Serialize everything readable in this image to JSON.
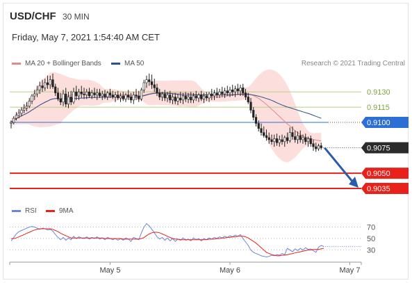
{
  "header": {
    "symbol": "USD/CHF",
    "interval": "30 MIN",
    "datetime": "Friday, May 7, 2021 1:54:40 AM CET",
    "credit": "Research © 2021 Trading Central"
  },
  "legend": {
    "ma20_label": "MA 20 + Bollinger Bands",
    "ma50_label": "MA 50",
    "rsi_label": "RSI",
    "ma9_label": "9MA"
  },
  "colors": {
    "ma20": "#e08a8a",
    "ma50": "#2d4e8f",
    "band_fill": "#fbd9d6",
    "resistance": "#b7cf86",
    "pivot": "#2e6fd6",
    "support": "#e8211a",
    "current": "#2b2b2b",
    "arrow": "#2a5caa",
    "rsi": "#6a86d6",
    "rsi_ma": "#e8211a"
  },
  "chart_data": [
    {
      "type": "candlestick",
      "title": "USD/CHF 30 MIN",
      "x_tick_labels": [
        "May 5",
        "May 6",
        "May 7"
      ],
      "x_tick_index": [
        38,
        84,
        130
      ],
      "ylim": [
        0.9022,
        0.9152
      ],
      "series": [
        {
          "name": "MA 20 + Bollinger Bands"
        },
        {
          "name": "MA 50"
        }
      ],
      "ohlc": [
        [
          0.9099,
          0.9102,
          0.9094,
          0.91
        ],
        [
          0.91,
          0.9106,
          0.9098,
          0.9104
        ],
        [
          0.9104,
          0.911,
          0.9102,
          0.9107
        ],
        [
          0.9107,
          0.9113,
          0.9104,
          0.9109
        ],
        [
          0.9109,
          0.9115,
          0.9106,
          0.9112
        ],
        [
          0.9112,
          0.9118,
          0.9109,
          0.9114
        ],
        [
          0.9114,
          0.912,
          0.9111,
          0.9116
        ],
        [
          0.9116,
          0.9124,
          0.9114,
          0.9121
        ],
        [
          0.9121,
          0.9128,
          0.9118,
          0.9126
        ],
        [
          0.9126,
          0.9132,
          0.9122,
          0.9128
        ],
        [
          0.9128,
          0.9136,
          0.9125,
          0.9132
        ],
        [
          0.9132,
          0.914,
          0.9128,
          0.9136
        ],
        [
          0.9136,
          0.9142,
          0.913,
          0.9134
        ],
        [
          0.9134,
          0.9143,
          0.9131,
          0.9139
        ],
        [
          0.9139,
          0.9146,
          0.9133,
          0.9137
        ],
        [
          0.9137,
          0.9146,
          0.9133,
          0.9142
        ],
        [
          0.9142,
          0.9148,
          0.9133,
          0.9135
        ],
        [
          0.9135,
          0.9138,
          0.9126,
          0.9129
        ],
        [
          0.9129,
          0.9134,
          0.9121,
          0.9123
        ],
        [
          0.9123,
          0.9129,
          0.9117,
          0.912
        ],
        [
          0.912,
          0.9132,
          0.9116,
          0.9128
        ],
        [
          0.9128,
          0.9134,
          0.9115,
          0.9118
        ],
        [
          0.9118,
          0.913,
          0.9114,
          0.9125
        ],
        [
          0.9125,
          0.9131,
          0.9117,
          0.912
        ],
        [
          0.912,
          0.9134,
          0.9118,
          0.913
        ],
        [
          0.913,
          0.9136,
          0.9122,
          0.9126
        ],
        [
          0.9126,
          0.9133,
          0.9122,
          0.913
        ],
        [
          0.913,
          0.9136,
          0.9124,
          0.9128
        ],
        [
          0.9128,
          0.9134,
          0.9123,
          0.9127
        ],
        [
          0.9127,
          0.9133,
          0.9123,
          0.913
        ],
        [
          0.913,
          0.9134,
          0.9124,
          0.9126
        ],
        [
          0.9126,
          0.9132,
          0.9123,
          0.9129
        ],
        [
          0.9129,
          0.9134,
          0.9124,
          0.9127
        ],
        [
          0.9127,
          0.9133,
          0.9122,
          0.9129
        ],
        [
          0.9129,
          0.9133,
          0.9124,
          0.9126
        ],
        [
          0.9126,
          0.9131,
          0.9122,
          0.9128
        ],
        [
          0.9128,
          0.9132,
          0.9123,
          0.9125
        ],
        [
          0.9125,
          0.9131,
          0.9122,
          0.9129
        ],
        [
          0.9129,
          0.9133,
          0.9124,
          0.9127
        ],
        [
          0.9127,
          0.9131,
          0.9123,
          0.9125
        ],
        [
          0.9125,
          0.913,
          0.912,
          0.9127
        ],
        [
          0.9127,
          0.9131,
          0.9122,
          0.9124
        ],
        [
          0.9124,
          0.9129,
          0.912,
          0.9126
        ],
        [
          0.9126,
          0.913,
          0.9121,
          0.9123
        ],
        [
          0.9123,
          0.9129,
          0.912,
          0.9127
        ],
        [
          0.9127,
          0.9132,
          0.9122,
          0.9125
        ],
        [
          0.9125,
          0.9129,
          0.9119,
          0.9122
        ],
        [
          0.9122,
          0.913,
          0.9118,
          0.9127
        ],
        [
          0.9127,
          0.9133,
          0.9122,
          0.9126
        ],
        [
          0.9126,
          0.9131,
          0.912,
          0.9123
        ],
        [
          0.9123,
          0.9134,
          0.9121,
          0.9132
        ],
        [
          0.9132,
          0.9142,
          0.9129,
          0.9139
        ],
        [
          0.9139,
          0.9146,
          0.9134,
          0.9142
        ],
        [
          0.9142,
          0.9148,
          0.9136,
          0.914
        ],
        [
          0.914,
          0.9147,
          0.9133,
          0.9137
        ],
        [
          0.9137,
          0.9143,
          0.913,
          0.9134
        ],
        [
          0.9134,
          0.9138,
          0.9126,
          0.9129
        ],
        [
          0.9129,
          0.9133,
          0.9122,
          0.9125
        ],
        [
          0.9125,
          0.913,
          0.9121,
          0.9128
        ],
        [
          0.9128,
          0.9132,
          0.9121,
          0.9124
        ],
        [
          0.9124,
          0.913,
          0.912,
          0.9127
        ],
        [
          0.9127,
          0.9131,
          0.9119,
          0.9122
        ],
        [
          0.9122,
          0.9128,
          0.9118,
          0.9125
        ],
        [
          0.9125,
          0.9129,
          0.9118,
          0.9121
        ],
        [
          0.9121,
          0.9128,
          0.9117,
          0.9124
        ],
        [
          0.9124,
          0.913,
          0.9119,
          0.9122
        ],
        [
          0.9122,
          0.9129,
          0.9118,
          0.9126
        ],
        [
          0.9126,
          0.913,
          0.912,
          0.9123
        ],
        [
          0.9123,
          0.9129,
          0.9119,
          0.9125
        ],
        [
          0.9125,
          0.913,
          0.9119,
          0.9122
        ],
        [
          0.9122,
          0.9129,
          0.9119,
          0.9126
        ],
        [
          0.9126,
          0.9131,
          0.9121,
          0.9124
        ],
        [
          0.9124,
          0.9129,
          0.912,
          0.9127
        ],
        [
          0.9127,
          0.9131,
          0.9121,
          0.9123
        ],
        [
          0.9123,
          0.9129,
          0.9119,
          0.9126
        ],
        [
          0.9126,
          0.913,
          0.9121,
          0.9124
        ],
        [
          0.9124,
          0.913,
          0.912,
          0.9128
        ],
        [
          0.9128,
          0.9133,
          0.9122,
          0.9126
        ],
        [
          0.9126,
          0.9132,
          0.9122,
          0.9129
        ],
        [
          0.9129,
          0.9134,
          0.9124,
          0.9127
        ],
        [
          0.9127,
          0.9133,
          0.9124,
          0.913
        ],
        [
          0.913,
          0.9135,
          0.9125,
          0.9128
        ],
        [
          0.9128,
          0.9134,
          0.9124,
          0.9131
        ],
        [
          0.9131,
          0.9136,
          0.9126,
          0.9129
        ],
        [
          0.9129,
          0.9135,
          0.9125,
          0.9132
        ],
        [
          0.9132,
          0.9137,
          0.9126,
          0.913
        ],
        [
          0.913,
          0.9136,
          0.9125,
          0.9133
        ],
        [
          0.9133,
          0.9138,
          0.9127,
          0.9131
        ],
        [
          0.9131,
          0.9137,
          0.9126,
          0.9134
        ],
        [
          0.9134,
          0.9138,
          0.9126,
          0.9129
        ],
        [
          0.9129,
          0.9133,
          0.9122,
          0.9125
        ],
        [
          0.9125,
          0.9129,
          0.9118,
          0.912
        ],
        [
          0.912,
          0.9124,
          0.9109,
          0.9112
        ],
        [
          0.9112,
          0.9115,
          0.9102,
          0.9105
        ],
        [
          0.9105,
          0.9108,
          0.9096,
          0.9099
        ],
        [
          0.9099,
          0.9102,
          0.9091,
          0.9094
        ],
        [
          0.9094,
          0.9099,
          0.9087,
          0.909
        ],
        [
          0.909,
          0.9096,
          0.9085,
          0.9087
        ],
        [
          0.9087,
          0.9093,
          0.9082,
          0.9085
        ],
        [
          0.9085,
          0.909,
          0.9079,
          0.9083
        ],
        [
          0.9083,
          0.9088,
          0.9078,
          0.9081
        ],
        [
          0.9081,
          0.9088,
          0.9076,
          0.9084
        ],
        [
          0.9084,
          0.9089,
          0.9077,
          0.908
        ],
        [
          0.908,
          0.9087,
          0.9076,
          0.9083
        ],
        [
          0.9083,
          0.9088,
          0.9078,
          0.9081
        ],
        [
          0.9081,
          0.9087,
          0.9076,
          0.9085
        ],
        [
          0.9085,
          0.909,
          0.9079,
          0.9082
        ],
        [
          0.9082,
          0.9095,
          0.908,
          0.909
        ],
        [
          0.909,
          0.9096,
          0.9083,
          0.9086
        ],
        [
          0.9086,
          0.9092,
          0.908,
          0.9083
        ],
        [
          0.9083,
          0.9091,
          0.9079,
          0.9087
        ],
        [
          0.9087,
          0.9092,
          0.908,
          0.9083
        ],
        [
          0.9083,
          0.9088,
          0.9079,
          0.9085
        ],
        [
          0.9085,
          0.9089,
          0.9078,
          0.9081
        ],
        [
          0.9081,
          0.9086,
          0.9076,
          0.9084
        ],
        [
          0.9084,
          0.9087,
          0.9076,
          0.9079
        ],
        [
          0.9079,
          0.9083,
          0.9072,
          0.9076
        ],
        [
          0.9076,
          0.908,
          0.9071,
          0.9074
        ],
        [
          0.9074,
          0.9079,
          0.9072,
          0.9077
        ],
        [
          0.9077,
          0.908,
          0.9073,
          0.9075
        ]
      ],
      "lines": [
        {
          "label": "0.9130",
          "value": 0.913,
          "kind": "resistance"
        },
        {
          "label": "0.9115",
          "value": 0.9115,
          "kind": "resistance"
        },
        {
          "label": "0.9100",
          "value": 0.91,
          "kind": "pivot"
        },
        {
          "label": "0.9075",
          "value": 0.9075,
          "kind": "current"
        },
        {
          "label": "0.9050",
          "value": 0.905,
          "kind": "support"
        },
        {
          "label": "0.9035",
          "value": 0.9035,
          "kind": "support"
        }
      ],
      "forecast_target": 0.9035
    },
    {
      "type": "line",
      "title": "RSI",
      "ylim": [
        15,
        90
      ],
      "y_tick_labels": [
        "70",
        "50",
        "30"
      ],
      "y_ticks": [
        70,
        50,
        30
      ],
      "series": [
        {
          "name": "RSI",
          "values": [
            46,
            52,
            58,
            62,
            64,
            66,
            68,
            70,
            71,
            70,
            68,
            66,
            68,
            67,
            65,
            66,
            63,
            57,
            52,
            48,
            52,
            47,
            51,
            48,
            54,
            50,
            53,
            51,
            50,
            53,
            49,
            52,
            50,
            53,
            49,
            51,
            48,
            52,
            50,
            48,
            50,
            47,
            50,
            47,
            51,
            49,
            45,
            52,
            50,
            48,
            60,
            70,
            76,
            72,
            66,
            60,
            53,
            49,
            52,
            47,
            51,
            46,
            50,
            45,
            49,
            47,
            51,
            47,
            49,
            46,
            51,
            48,
            50,
            46,
            50,
            48,
            51,
            49,
            52,
            50,
            53,
            51,
            54,
            52,
            55,
            53,
            56,
            54,
            57,
            50,
            44,
            38,
            30,
            26,
            24,
            22,
            20,
            19,
            18,
            19,
            21,
            20,
            22,
            21,
            24,
            22,
            33,
            30,
            27,
            32,
            29,
            33,
            30,
            34,
            31,
            32,
            29,
            26,
            35,
            38,
            36
          ]
        },
        {
          "name": "9MA",
          "values": [
            50,
            50,
            51,
            53,
            55,
            57,
            59,
            61,
            63,
            65,
            66,
            67,
            67,
            67,
            67,
            67,
            66,
            64,
            62,
            59,
            57,
            55,
            53,
            51,
            51,
            51,
            51,
            51,
            51,
            51,
            51,
            51,
            51,
            51,
            51,
            51,
            50,
            50,
            50,
            50,
            50,
            50,
            50,
            49,
            49,
            49,
            49,
            49,
            49,
            49,
            50,
            52,
            55,
            58,
            60,
            61,
            61,
            60,
            58,
            56,
            54,
            52,
            50,
            49,
            49,
            48,
            48,
            48,
            48,
            48,
            48,
            48,
            48,
            48,
            48,
            48,
            49,
            49,
            49,
            50,
            50,
            51,
            51,
            52,
            52,
            53,
            53,
            54,
            54,
            54,
            53,
            51,
            48,
            45,
            42,
            38,
            34,
            30,
            26,
            24,
            22,
            21,
            20,
            20,
            21,
            21,
            22,
            23,
            24,
            25,
            26,
            27,
            28,
            29,
            30,
            30,
            31,
            31,
            31,
            32,
            33
          ]
        }
      ]
    }
  ]
}
